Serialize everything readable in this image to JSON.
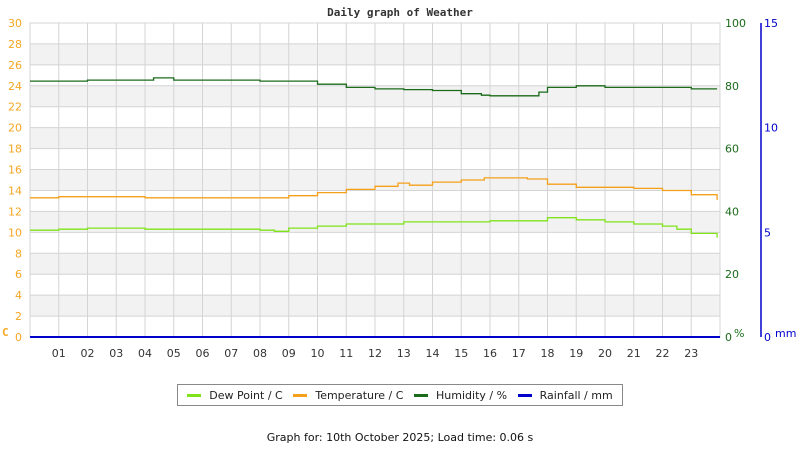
{
  "chart_data": {
    "type": "line",
    "title": "Daily graph of Weather",
    "xlabel": "",
    "x_ticks": [
      "01",
      "02",
      "03",
      "04",
      "05",
      "06",
      "07",
      "08",
      "09",
      "10",
      "11",
      "12",
      "13",
      "14",
      "15",
      "16",
      "17",
      "18",
      "19",
      "20",
      "21",
      "22",
      "23"
    ],
    "xlim": [
      0,
      24
    ],
    "axes": {
      "left": {
        "label": "C",
        "ticks": [
          0,
          2,
          4,
          6,
          8,
          10,
          12,
          14,
          16,
          18,
          20,
          22,
          24,
          26,
          28,
          30
        ],
        "ylim": [
          0,
          30
        ],
        "color": "#f5a623"
      },
      "right1": {
        "label": "%",
        "ticks": [
          0,
          20,
          40,
          60,
          80,
          100
        ],
        "ylim": [
          0,
          100
        ],
        "color": "#1a6b1a"
      },
      "right2": {
        "label": "mm",
        "ticks": [
          0,
          5,
          10,
          15
        ],
        "ylim": [
          0,
          15
        ],
        "color": "#0000cc"
      }
    },
    "grid": true,
    "legend_position": "bottom",
    "series": [
      {
        "name": "Dew Point / C",
        "axis": "left",
        "color": "#7fe31a",
        "x": [
          0,
          1,
          2,
          3,
          4,
          5,
          6,
          7,
          8,
          8.5,
          9,
          10,
          11,
          12,
          13,
          14,
          15,
          16,
          17,
          18,
          19,
          20,
          21,
          22,
          22.5,
          23,
          23.9
        ],
        "values": [
          10.2,
          10.3,
          10.4,
          10.4,
          10.3,
          10.3,
          10.3,
          10.3,
          10.2,
          10.1,
          10.4,
          10.6,
          10.8,
          10.8,
          11.0,
          11.0,
          11.0,
          11.1,
          11.1,
          11.4,
          11.2,
          11.0,
          10.8,
          10.6,
          10.3,
          9.9,
          9.5
        ]
      },
      {
        "name": "Temperature / C",
        "axis": "left",
        "color": "#f5a01a",
        "x": [
          0,
          1,
          2,
          3,
          4,
          5,
          6,
          7,
          8,
          8.7,
          9,
          10,
          11,
          12,
          12.8,
          13.2,
          14,
          15,
          15.8,
          16.5,
          17.3,
          18,
          19,
          20,
          21,
          22,
          23,
          23.9
        ],
        "values": [
          13.3,
          13.4,
          13.4,
          13.4,
          13.3,
          13.3,
          13.3,
          13.3,
          13.3,
          13.3,
          13.5,
          13.8,
          14.1,
          14.4,
          14.7,
          14.5,
          14.8,
          15.0,
          15.2,
          15.2,
          15.1,
          14.6,
          14.3,
          14.3,
          14.2,
          14.0,
          13.6,
          13.1
        ]
      },
      {
        "name": "Humidity / %",
        "axis": "right1",
        "color": "#1a6b1a",
        "x": [
          0,
          1,
          2,
          3,
          4,
          4.3,
          5,
          6,
          7,
          8,
          9,
          10,
          11,
          12,
          13,
          14,
          15,
          15.7,
          16,
          17,
          17.7,
          18,
          19,
          20,
          21,
          22,
          23,
          23.9
        ],
        "values": [
          81.5,
          81.5,
          81.8,
          81.8,
          81.8,
          82.5,
          81.8,
          81.8,
          81.8,
          81.5,
          81.5,
          80.5,
          79.5,
          79.0,
          78.8,
          78.5,
          77.5,
          77.0,
          76.8,
          76.8,
          78.0,
          79.5,
          80.0,
          79.5,
          79.5,
          79.5,
          79.0,
          79.0
        ]
      },
      {
        "name": "Rainfall / mm",
        "axis": "right2",
        "color": "#0000cc",
        "x": [
          0,
          24
        ],
        "values": [
          0,
          0
        ]
      }
    ]
  },
  "legend": {
    "items": [
      {
        "label": "Dew Point / C",
        "color": "#7fe31a"
      },
      {
        "label": "Temperature / C",
        "color": "#f5a01a"
      },
      {
        "label": "Humidity / %",
        "color": "#1a6b1a"
      },
      {
        "label": "Rainfall / mm",
        "color": "#0000cc"
      }
    ]
  },
  "footer": {
    "text": "Graph for: 10th October 2025; Load time: 0.06 s"
  },
  "colors": {
    "band": "#f2f2f2",
    "grid": "#d4d4d4",
    "left_axis": "#f5a623",
    "humidity_axis": "#1a6b1a",
    "rain_axis": "#0000cc",
    "hour_labels": "#333333"
  }
}
